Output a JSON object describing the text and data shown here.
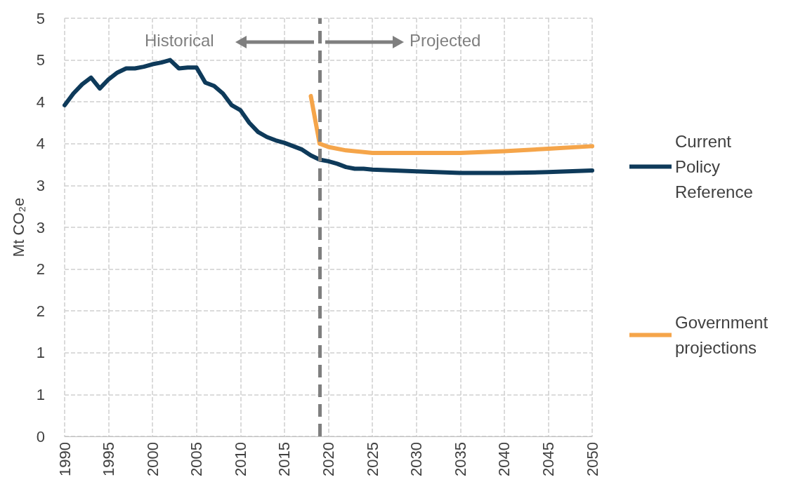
{
  "chart_data": {
    "type": "line",
    "ylabel": "Mt CO₂e",
    "xlim": [
      1990,
      2050
    ],
    "xticks": [
      1990,
      1995,
      2000,
      2005,
      2010,
      2015,
      2020,
      2025,
      2030,
      2035,
      2040,
      2045,
      2050
    ],
    "ylim": [
      0,
      5
    ],
    "yticks": [
      0,
      {
        "value": 0.5,
        "label": "1"
      },
      1,
      {
        "value": 1.5,
        "label": "2"
      },
      2,
      {
        "value": 2.5,
        "label": "3"
      },
      3,
      {
        "value": 3.5,
        "label": "4"
      },
      4,
      {
        "value": 4.5,
        "label": "5"
      },
      5
    ],
    "series": [
      {
        "name": "Current Policy Reference",
        "color": "#0e3a5a",
        "x": [
          1990,
          1991,
          1992,
          1993,
          1994,
          1995,
          1996,
          1997,
          1998,
          1999,
          2000,
          2001,
          2002,
          2003,
          2004,
          2005,
          2006,
          2007,
          2008,
          2009,
          2010,
          2011,
          2012,
          2013,
          2014,
          2015,
          2016,
          2017,
          2018,
          2019,
          2020,
          2021,
          2022,
          2023,
          2024,
          2025,
          2030,
          2035,
          2040,
          2045,
          2050
        ],
        "values": [
          3.96,
          4.1,
          4.21,
          4.29,
          4.16,
          4.27,
          4.35,
          4.4,
          4.4,
          4.42,
          4.45,
          4.47,
          4.5,
          4.4,
          4.41,
          4.41,
          4.23,
          4.19,
          4.1,
          3.96,
          3.9,
          3.75,
          3.64,
          3.58,
          3.54,
          3.51,
          3.47,
          3.43,
          3.36,
          3.31,
          3.29,
          3.26,
          3.22,
          3.2,
          3.2,
          3.19,
          3.17,
          3.15,
          3.15,
          3.16,
          3.18
        ]
      },
      {
        "name": "Government projections",
        "color": "#f5a54a",
        "x": [
          2018,
          2019,
          2020,
          2022,
          2025,
          2030,
          2035,
          2040,
          2045,
          2050
        ],
        "values": [
          4.07,
          3.5,
          3.46,
          3.42,
          3.39,
          3.39,
          3.39,
          3.41,
          3.44,
          3.47
        ]
      }
    ],
    "ref_lines": [
      {
        "axis": "x",
        "value": 2019,
        "color": "#7f7f7f",
        "line_style": "dashed"
      }
    ],
    "annotations": [
      "Historical",
      "Projected"
    ],
    "grid": true,
    "legend": "right",
    "marker": "none",
    "line_style": "solid"
  }
}
